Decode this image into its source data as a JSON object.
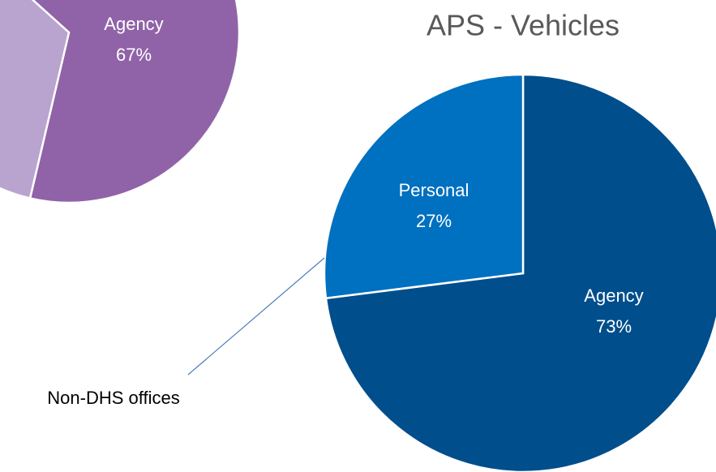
{
  "chart_data": [
    {
      "type": "pie",
      "categories": [
        "Agency",
        null
      ],
      "values": [
        67,
        33
      ],
      "value_labels": [
        "67%",
        null
      ],
      "colors": [
        "#9063a8",
        "#b9a3cf"
      ]
    },
    {
      "type": "pie",
      "title": "APS - Vehicles",
      "categories": [
        "Agency",
        "Personal"
      ],
      "values": [
        73,
        27
      ],
      "value_labels": [
        "73%",
        "27%"
      ],
      "colors": [
        "#004e8c",
        "#0070c0"
      ],
      "annotation": "Non-DHS offices"
    }
  ]
}
